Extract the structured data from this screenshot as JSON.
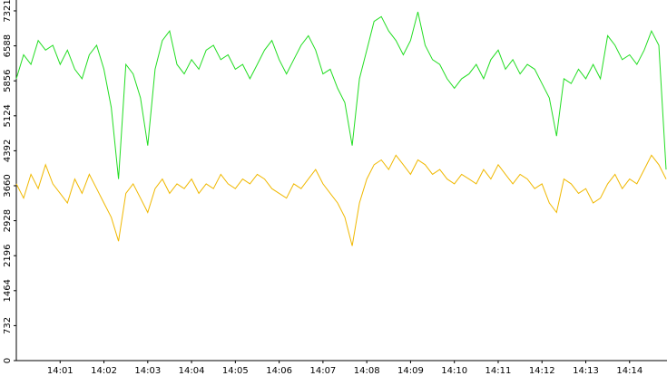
{
  "chart_data": {
    "type": "line",
    "categories": [
      null,
      null,
      null,
      null,
      null,
      null,
      "14:01",
      null,
      null,
      null,
      null,
      null,
      "14:02",
      null,
      null,
      null,
      null,
      null,
      "14:03",
      null,
      null,
      null,
      null,
      null,
      "14:04",
      null,
      null,
      null,
      null,
      null,
      "14:05",
      null,
      null,
      null,
      null,
      null,
      "14:06",
      null,
      null,
      null,
      null,
      null,
      "14:07",
      null,
      null,
      null,
      null,
      null,
      "14:08",
      null,
      null,
      null,
      null,
      null,
      "14:09",
      null,
      null,
      null,
      null,
      null,
      "14:10",
      null,
      null,
      null,
      null,
      null,
      "14:11",
      null,
      null,
      null,
      null,
      null,
      "14:12",
      null,
      null,
      null,
      null,
      null,
      "14:13",
      null,
      null,
      null,
      null,
      null,
      "14:14",
      null,
      null,
      null,
      null,
      null
    ],
    "series": [
      {
        "color": "#22dd22",
        "values": [
          5900,
          6400,
          6200,
          6700,
          6500,
          6600,
          6200,
          6500,
          6100,
          5900,
          6400,
          6600,
          6100,
          5300,
          3800,
          6200,
          6000,
          5500,
          4500,
          6100,
          6700,
          6900,
          6200,
          6000,
          6300,
          6100,
          6500,
          6600,
          6300,
          6400,
          6100,
          6200,
          5900,
          6200,
          6500,
          6700,
          6300,
          6000,
          6300,
          6600,
          6800,
          6500,
          6000,
          6100,
          5700,
          5400,
          4500,
          5900,
          6500,
          7100,
          7200,
          6900,
          6700,
          6400,
          6700,
          7300,
          6600,
          6300,
          6200,
          5900,
          5700,
          5900,
          6000,
          6200,
          5900,
          6300,
          6500,
          6100,
          6300,
          6000,
          6200,
          6100,
          5800,
          5500,
          4700,
          5900,
          5800,
          6100,
          5900,
          6200,
          5900,
          6800,
          6600,
          6300,
          6400,
          6200,
          6500,
          6900,
          6600,
          4000
        ]
      },
      {
        "color": "#f0b800",
        "values": [
          3700,
          3400,
          3900,
          3600,
          4100,
          3700,
          3500,
          3300,
          3800,
          3500,
          3900,
          3600,
          3300,
          3000,
          2500,
          3500,
          3700,
          3400,
          3100,
          3600,
          3800,
          3500,
          3700,
          3600,
          3800,
          3500,
          3700,
          3600,
          3900,
          3700,
          3600,
          3800,
          3700,
          3900,
          3800,
          3600,
          3500,
          3400,
          3700,
          3600,
          3800,
          4000,
          3700,
          3500,
          3300,
          3000,
          2400,
          3300,
          3800,
          4100,
          4200,
          4000,
          4300,
          4100,
          3900,
          4200,
          4100,
          3900,
          4000,
          3800,
          3700,
          3900,
          3800,
          3700,
          4000,
          3800,
          4100,
          3900,
          3700,
          3900,
          3800,
          3600,
          3700,
          3300,
          3100,
          3800,
          3700,
          3500,
          3600,
          3300,
          3400,
          3700,
          3900,
          3600,
          3800,
          3700,
          4000,
          4300,
          4100,
          3800
        ]
      }
    ],
    "ylim": [
      0,
      7548
    ],
    "yticks": [
      0,
      732,
      1464,
      2196,
      2928,
      3660,
      4392,
      5124,
      5856,
      6588,
      7321
    ]
  }
}
